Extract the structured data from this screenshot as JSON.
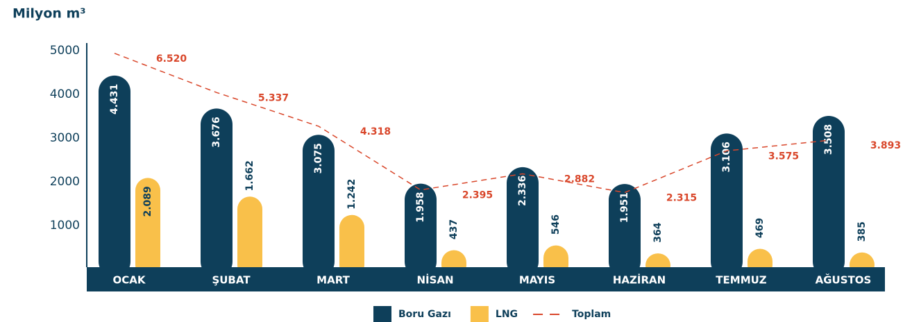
{
  "chart_data": {
    "type": "bar",
    "title": "Milyon m³",
    "categories": [
      "OCAK",
      "ŞUBAT",
      "MART",
      "NİSAN",
      "MAYIS",
      "HAZİRAN",
      "TEMMUZ",
      "AĞUSTOS"
    ],
    "series": [
      {
        "name": "Boru Gazı",
        "color": "#0e3f5a",
        "values": [
          4431,
          3676,
          3075,
          1958,
          2336,
          1951,
          3106,
          3508
        ],
        "value_labels": [
          "4.431",
          "3.676",
          "3.075",
          "1.958",
          "2.336",
          "1.951",
          "3.106",
          "3.508"
        ]
      },
      {
        "name": "LNG",
        "color": "#f9c04a",
        "values": [
          2089,
          1662,
          1242,
          437,
          546,
          364,
          469,
          385
        ],
        "value_labels": [
          "2.089",
          "1.662",
          "1.242",
          "437",
          "546",
          "364",
          "469",
          "385"
        ]
      },
      {
        "name": "Toplam",
        "type": "line",
        "axis": "y2",
        "color": "#d9472b",
        "values": [
          6520,
          5337,
          4318,
          2395,
          2882,
          2315,
          3575,
          3893
        ],
        "value_labels": [
          "6.520",
          "5.337",
          "4.318",
          "2.395",
          "2.882",
          "2.315",
          "3.575",
          "3.893"
        ]
      }
    ],
    "ylim": [
      0,
      5000
    ],
    "yticks": [
      1000,
      2000,
      3000,
      4000,
      5000
    ],
    "y2lim": [
      0,
      6600
    ],
    "legend": "bottom"
  }
}
